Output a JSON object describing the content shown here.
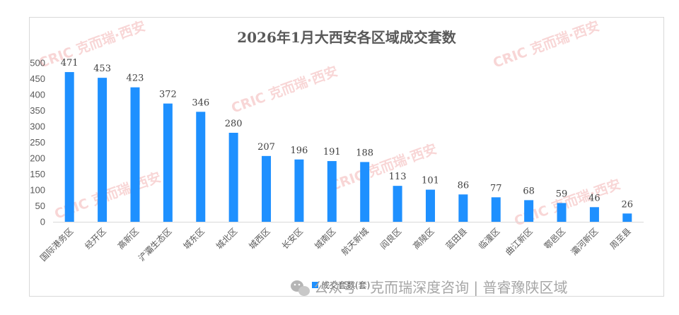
{
  "chart_data": {
    "type": "bar",
    "title": "2026年1月大西安各区域成交套数",
    "categories": [
      "国际港务区",
      "经开区",
      "高新区",
      "浐灞生态区",
      "城东区",
      "城北区",
      "城西区",
      "长安区",
      "城南区",
      "航天新城",
      "阎良区",
      "高陵区",
      "蓝田县",
      "临潼区",
      "曲江新区",
      "鄠邑区",
      "灞河新区",
      "周至县"
    ],
    "series": [
      {
        "name": "成交套数(套)",
        "values": [
          471,
          453,
          423,
          372,
          346,
          280,
          207,
          196,
          191,
          188,
          113,
          101,
          86,
          77,
          68,
          59,
          46,
          26
        ]
      }
    ],
    "ylim": [
      0,
      500
    ],
    "yticks": [
      0,
      50,
      100,
      150,
      200,
      250,
      300,
      350,
      400,
      450,
      500
    ],
    "legend": "bottom",
    "grid": false,
    "bar_color": "#1e90ff"
  },
  "watermark": {
    "text": "CRIC 克而瑞·西安"
  },
  "source": {
    "text": "公众号 · 克而瑞深度咨询 | 普睿豫陕区域",
    "icon": "wechat-icon"
  }
}
